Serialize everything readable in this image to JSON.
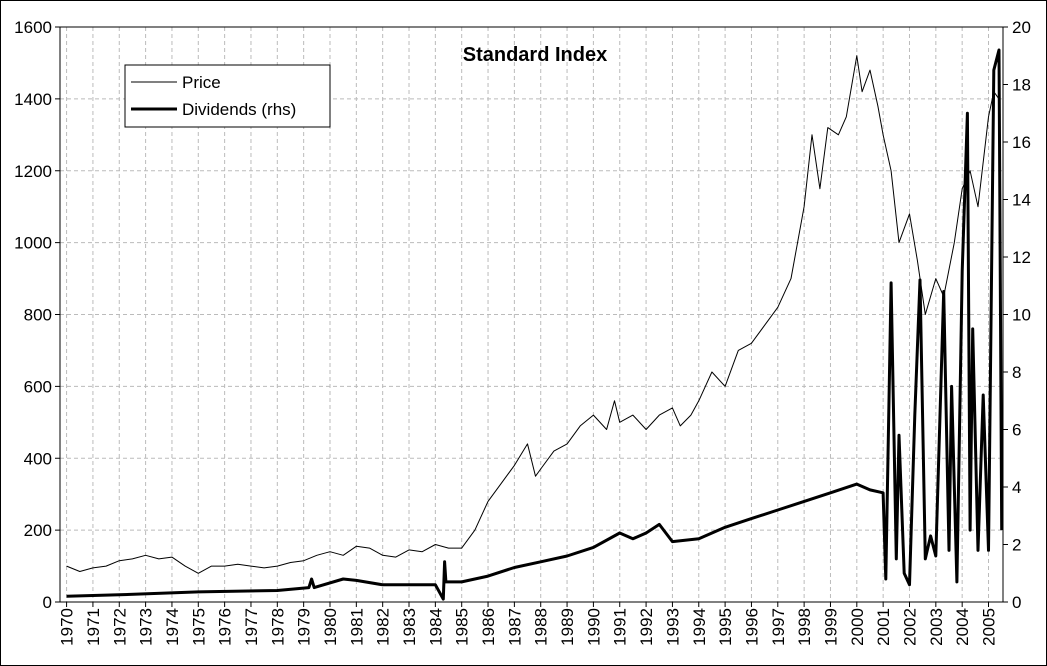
{
  "chart_data": {
    "type": "line",
    "title": "Standard Index",
    "legend": "top-left",
    "grid": true,
    "xlim": [
      1969.75,
      2005.55
    ],
    "xticks": [
      1970,
      1971,
      1972,
      1973,
      1974,
      1975,
      1976,
      1977,
      1978,
      1979,
      1980,
      1981,
      1982,
      1983,
      1984,
      1985,
      1986,
      1987,
      1988,
      1989,
      1990,
      1991,
      1992,
      1993,
      1994,
      1995,
      1996,
      1997,
      1998,
      1999,
      2000,
      2001,
      2002,
      2003,
      2004,
      2005
    ],
    "ylim": [
      0,
      1600
    ],
    "yticks": [
      0,
      200,
      400,
      600,
      800,
      1000,
      1200,
      1400,
      1600
    ],
    "y2lim": [
      0,
      20
    ],
    "y2ticks": [
      0,
      2,
      4,
      6,
      8,
      10,
      12,
      14,
      16,
      18,
      20
    ],
    "series": [
      {
        "name": "Price",
        "color": "#000000",
        "width": 1,
        "x": [
          1970,
          1970.5,
          1971,
          1971.5,
          1972,
          1972.5,
          1973,
          1973.5,
          1974,
          1974.5,
          1975,
          1975.5,
          1976,
          1976.5,
          1977,
          1977.5,
          1978,
          1978.5,
          1979,
          1979.5,
          1980,
          1980.5,
          1981,
          1981.5,
          1982,
          1982.5,
          1983,
          1983.5,
          1984,
          1984.5,
          1985,
          1985.5,
          1986,
          1986.5,
          1987,
          1987.5,
          1987.8,
          1988,
          1988.5,
          1989,
          1989.5,
          1990,
          1990.5,
          1990.8,
          1991,
          1991.5,
          1992,
          1992.5,
          1993,
          1993.3,
          1993.7,
          1994,
          1994.5,
          1995,
          1995.5,
          1996,
          1996.5,
          1997,
          1997.5,
          1998,
          1998.3,
          1998.6,
          1998.9,
          1999.3,
          1999.6,
          2000,
          2000.2,
          2000.5,
          2000.8,
          2001,
          2001.3,
          2001.6,
          2002,
          2002.3,
          2002.6,
          2003,
          2003.3,
          2003.7,
          2004,
          2004.3,
          2004.6,
          2005,
          2005.2,
          2005.4
        ],
        "values": [
          100,
          85,
          95,
          100,
          115,
          120,
          130,
          120,
          125,
          100,
          80,
          100,
          100,
          105,
          100,
          95,
          100,
          110,
          115,
          130,
          140,
          130,
          155,
          150,
          130,
          125,
          145,
          140,
          160,
          150,
          150,
          200,
          280,
          330,
          380,
          440,
          350,
          370,
          420,
          440,
          490,
          520,
          480,
          560,
          500,
          520,
          480,
          520,
          540,
          490,
          520,
          560,
          640,
          600,
          700,
          720,
          770,
          820,
          900,
          1100,
          1300,
          1150,
          1320,
          1300,
          1350,
          1520,
          1420,
          1480,
          1380,
          1300,
          1200,
          1000,
          1080,
          950,
          800,
          900,
          850,
          1000,
          1150,
          1200,
          1100,
          1350,
          1420,
          1400
        ]
      },
      {
        "name": "Dividends (rhs)",
        "color": "#000000",
        "width": 3,
        "axis": "y2",
        "x": [
          1970,
          1972,
          1975,
          1978,
          1979.2,
          1979.3,
          1979.4,
          1980.5,
          1981,
          1982,
          1984,
          1984.3,
          1984.35,
          1984.4,
          1985,
          1986,
          1987,
          1988,
          1989,
          1990,
          1991,
          1991.5,
          1992,
          1992.5,
          1993,
          1994,
          1995,
          1996,
          1997,
          1998,
          1999,
          2000,
          2000.5,
          2001,
          2001.1,
          2001.3,
          2001.5,
          2001.6,
          2001.8,
          2002,
          2002.2,
          2002.4,
          2002.6,
          2002.8,
          2003,
          2003.3,
          2003.5,
          2003.6,
          2003.8,
          2004,
          2004.2,
          2004.3,
          2004.4,
          2004.6,
          2004.8,
          2005,
          2005.2,
          2005.4,
          2005.5
        ],
        "values": [
          0.2,
          0.25,
          0.35,
          0.4,
          0.5,
          0.8,
          0.5,
          0.8,
          0.75,
          0.6,
          0.6,
          0.1,
          1.4,
          0.7,
          0.7,
          0.9,
          1.2,
          1.4,
          1.6,
          1.9,
          2.4,
          2.2,
          2.4,
          2.7,
          2.1,
          2.2,
          2.6,
          2.9,
          3.2,
          3.5,
          3.8,
          4.1,
          3.9,
          3.8,
          0.8,
          11.1,
          1.5,
          5.8,
          1.0,
          0.6,
          6.5,
          11.2,
          1.5,
          2.3,
          1.6,
          10.8,
          1.8,
          7.5,
          0.7,
          11.5,
          17,
          2.5,
          9.5,
          1.8,
          7.2,
          1.8,
          18.5,
          19.2,
          2.5
        ]
      }
    ]
  }
}
